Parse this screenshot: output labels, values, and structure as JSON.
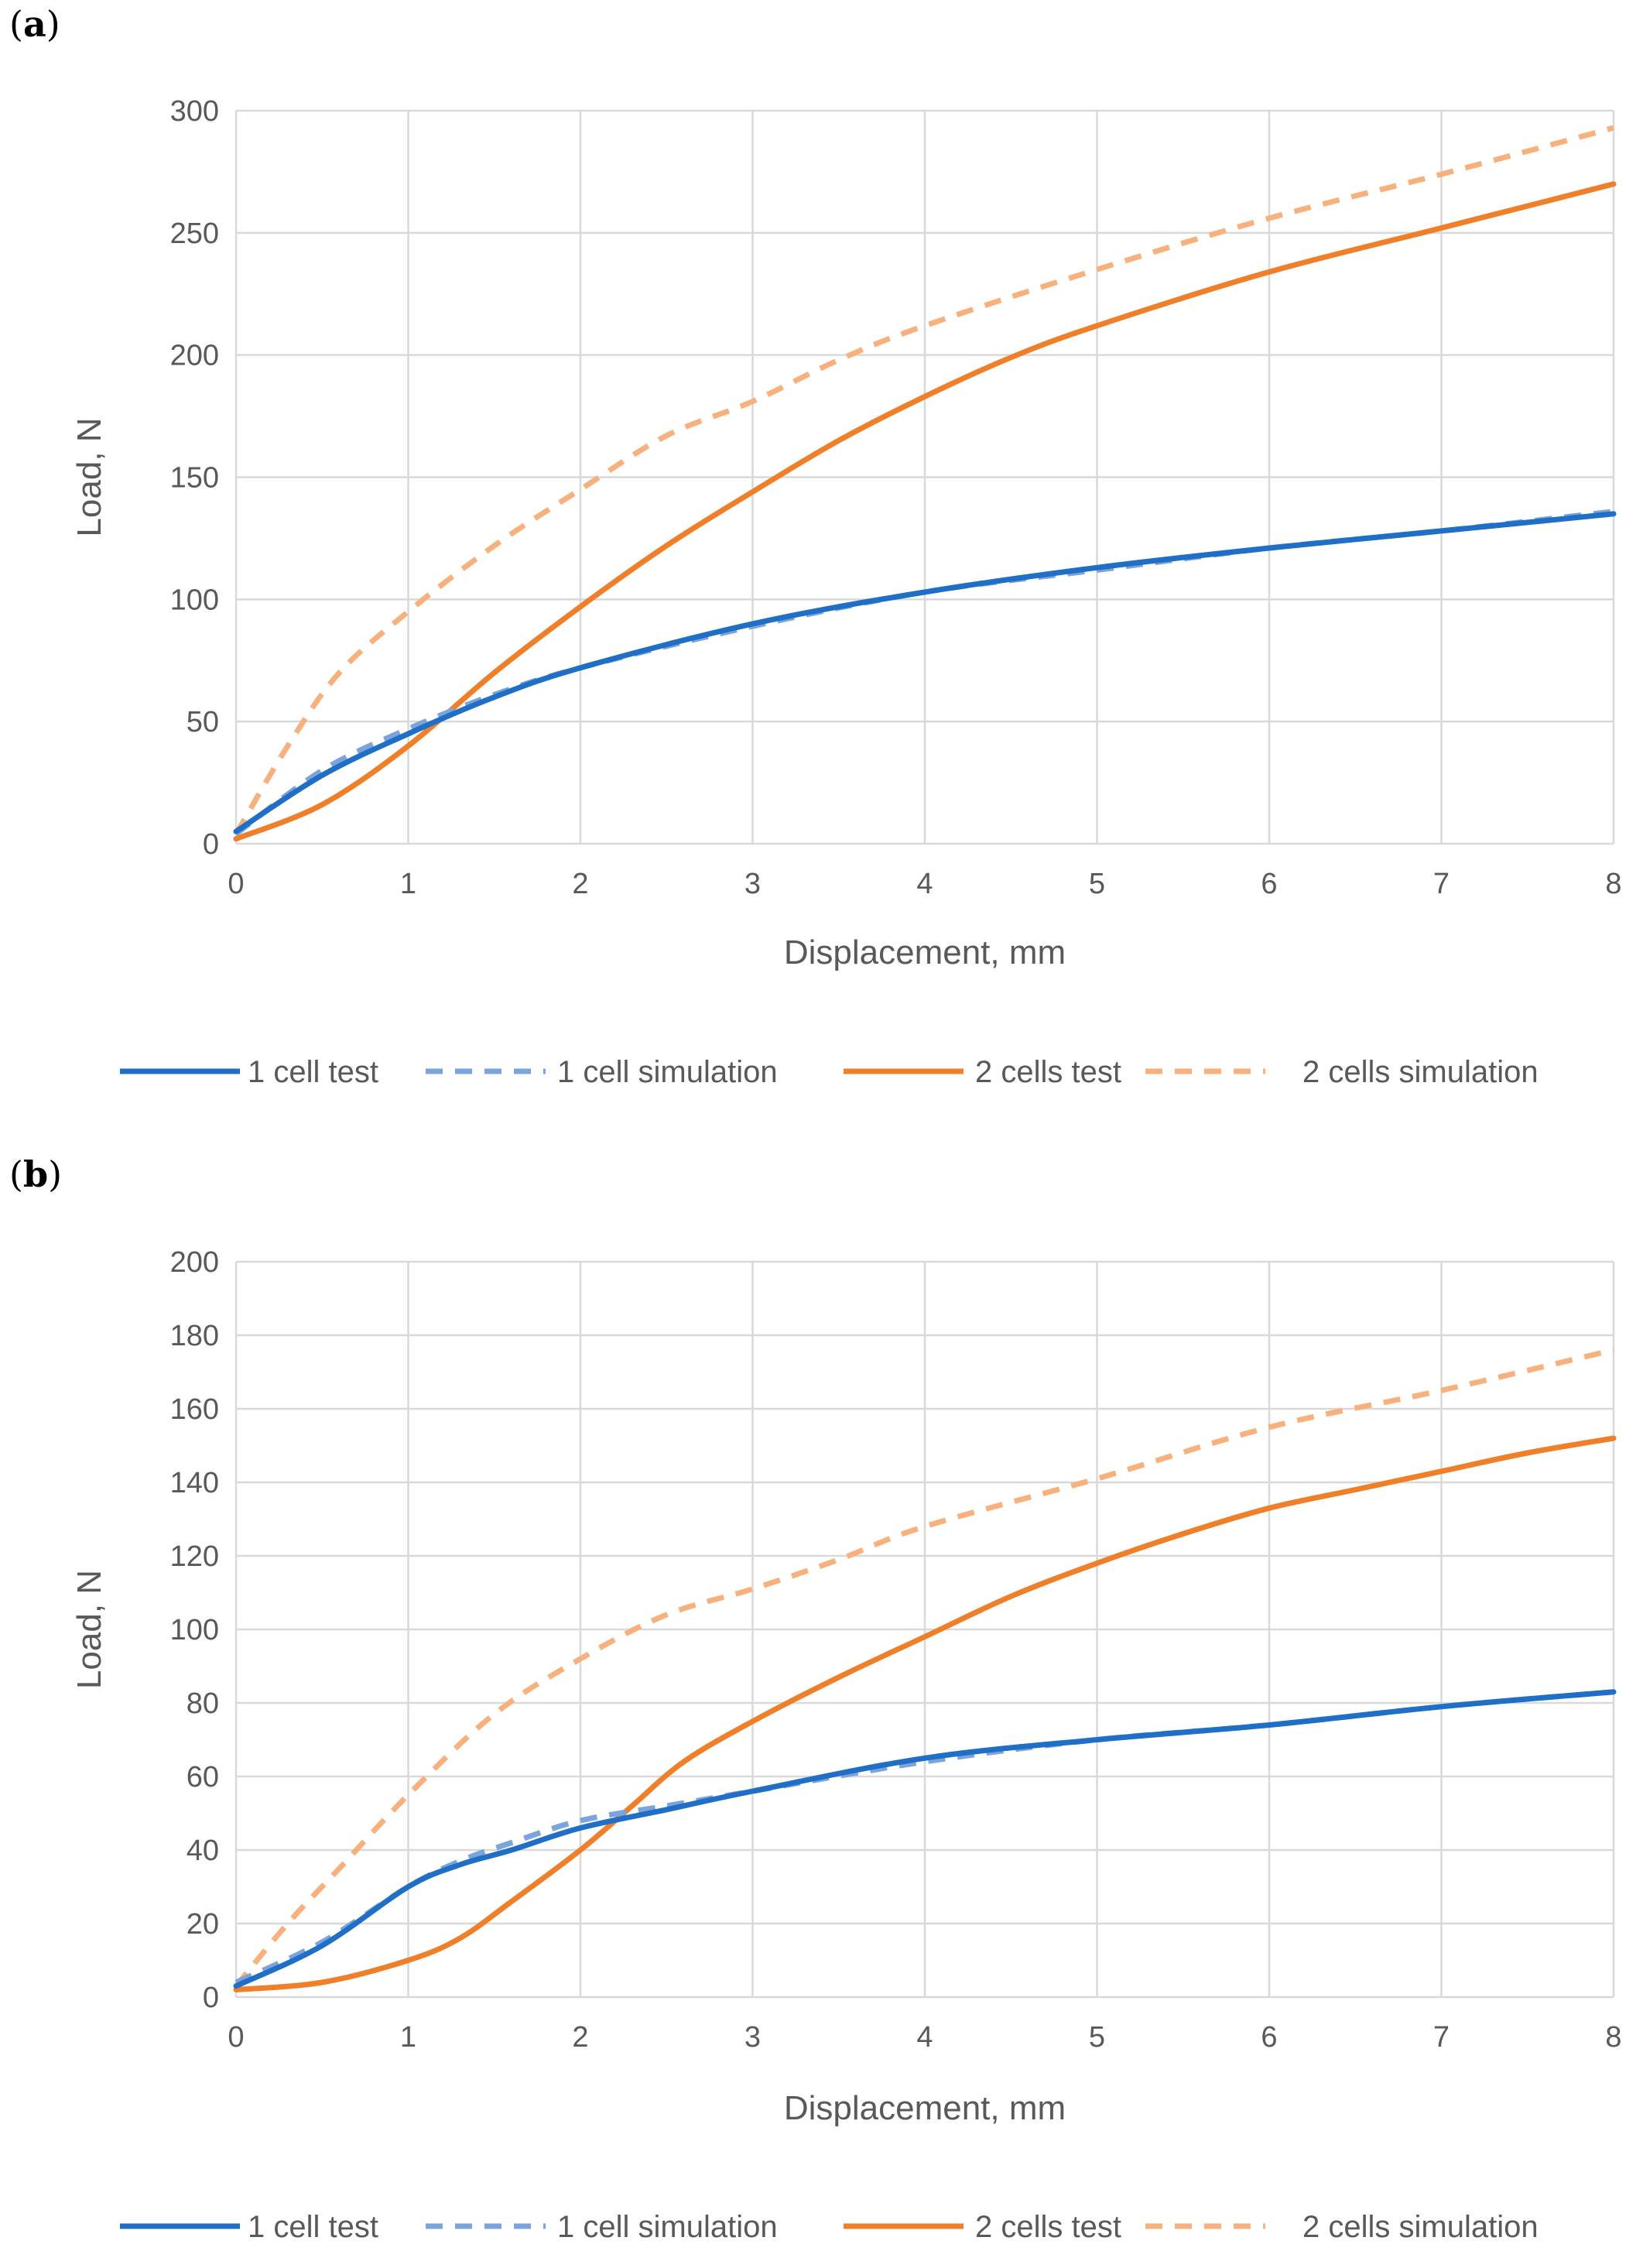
{
  "panels": [
    {
      "label_open": "(",
      "label_letter": "a",
      "label_close": ")"
    },
    {
      "label_open": "(",
      "label_letter": "b",
      "label_close": ")"
    }
  ],
  "chart_data": [
    {
      "type": "line",
      "panel": "a",
      "xlabel": "Displacement, mm",
      "ylabel": "Load, N",
      "xlim": [
        0,
        8
      ],
      "ylim": [
        0,
        300
      ],
      "xticks": [
        0,
        1,
        2,
        3,
        4,
        5,
        6,
        7,
        8
      ],
      "yticks": [
        0,
        50,
        100,
        150,
        200,
        250,
        300
      ],
      "grid": true,
      "legend_position": "bottom",
      "series": [
        {
          "name": "1 cell test",
          "color": "#1f6fc6",
          "dash": false,
          "x": [
            0,
            0.5,
            1,
            1.5,
            2,
            3,
            4,
            5,
            6,
            7,
            8
          ],
          "y": [
            5,
            28,
            45,
            60,
            72,
            90,
            103,
            113,
            121,
            128,
            135
          ]
        },
        {
          "name": "1 cell simulation",
          "color": "#7ba3dc",
          "dash": true,
          "x": [
            0,
            0.5,
            1,
            1.5,
            2,
            3,
            4,
            5,
            6,
            7,
            8
          ],
          "y": [
            4,
            30,
            47,
            61,
            72,
            89,
            103,
            112,
            121,
            128,
            136
          ]
        },
        {
          "name": "2 cells test",
          "color": "#f07f2a",
          "dash": false,
          "x": [
            0,
            0.5,
            1,
            1.5,
            2,
            2.5,
            3,
            3.5,
            4,
            4.5,
            5,
            6,
            7,
            8
          ],
          "y": [
            2,
            16,
            40,
            70,
            97,
            122,
            144,
            165,
            183,
            199,
            212,
            234,
            252,
            270
          ]
        },
        {
          "name": "2 cells simulation",
          "color": "#f8b07c",
          "dash": true,
          "x": [
            0,
            0.3,
            0.6,
            1,
            1.5,
            2,
            2.5,
            3,
            3.5,
            4,
            5,
            6,
            7,
            8
          ],
          "y": [
            4,
            40,
            70,
            95,
            122,
            145,
            167,
            181,
            198,
            212,
            235,
            256,
            274,
            293
          ]
        }
      ]
    },
    {
      "type": "line",
      "panel": "b",
      "xlabel": "Displacement, mm",
      "ylabel": "Load, N",
      "xlim": [
        0,
        8
      ],
      "ylim": [
        0,
        200
      ],
      "xticks": [
        0,
        1,
        2,
        3,
        4,
        5,
        6,
        7,
        8
      ],
      "yticks": [
        0,
        20,
        40,
        60,
        80,
        100,
        120,
        140,
        160,
        180,
        200
      ],
      "grid": true,
      "legend_position": "bottom",
      "series": [
        {
          "name": "1 cell test",
          "color": "#1f6fc6",
          "dash": false,
          "x": [
            0,
            0.5,
            1,
            1.3,
            1.6,
            2,
            2.5,
            3,
            4,
            5,
            6,
            7,
            8
          ],
          "y": [
            3,
            14,
            30,
            36,
            40,
            46,
            51,
            56,
            65,
            70,
            74,
            79,
            83
          ]
        },
        {
          "name": "1 cell simulation",
          "color": "#7ba3dc",
          "dash": true,
          "x": [
            0,
            0.5,
            1,
            1.3,
            1.6,
            2,
            2.5,
            3,
            4,
            5,
            6,
            7,
            8
          ],
          "y": [
            4,
            15,
            30,
            37,
            42,
            48,
            52,
            56,
            64,
            70,
            74,
            79,
            83
          ]
        },
        {
          "name": "2 cells test",
          "color": "#f07f2a",
          "dash": false,
          "x": [
            0,
            0.5,
            1,
            1.3,
            1.6,
            2,
            2.3,
            2.6,
            3,
            3.5,
            4,
            4.5,
            5,
            5.5,
            6,
            6.5,
            7,
            7.5,
            8
          ],
          "y": [
            2,
            4,
            10,
            16,
            26,
            40,
            52,
            64,
            75,
            87,
            98,
            109,
            118,
            126,
            133,
            138,
            143,
            148,
            152
          ]
        },
        {
          "name": "2 cells simulation",
          "color": "#f8b07c",
          "dash": true,
          "x": [
            0,
            0.3,
            0.6,
            1,
            1.5,
            2,
            2.5,
            3,
            3.5,
            4,
            5,
            6,
            7,
            8
          ],
          "y": [
            3,
            20,
            35,
            55,
            77,
            92,
            104,
            111,
            119,
            128,
            141,
            155,
            165,
            176
          ]
        }
      ]
    }
  ]
}
